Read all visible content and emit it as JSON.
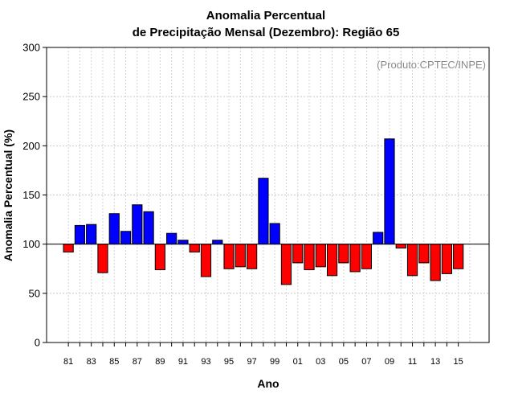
{
  "chart_data": {
    "type": "bar",
    "title_line1": "Anomalia Percentual",
    "title_line2": "de Precipitação Mensal (Dezembro): Região 65",
    "xlabel": "Ano",
    "ylabel": "Anomalia Percentual (%)",
    "credit": "(Produto:CPTEC/INPE)",
    "baseline": 100,
    "ylim": [
      0,
      300
    ],
    "yticks": [
      0,
      50,
      100,
      150,
      200,
      250,
      300
    ],
    "xtick_labels": [
      "81",
      "83",
      "85",
      "87",
      "89",
      "91",
      "93",
      "95",
      "97",
      "99",
      "01",
      "03",
      "05",
      "07",
      "09",
      "11",
      "13",
      "15"
    ],
    "categories": [
      "81",
      "82",
      "83",
      "84",
      "85",
      "86",
      "87",
      "88",
      "89",
      "90",
      "91",
      "92",
      "93",
      "94",
      "95",
      "96",
      "97",
      "98",
      "99",
      "00",
      "01",
      "02",
      "03",
      "04",
      "05",
      "06",
      "07",
      "08",
      "09",
      "10",
      "11",
      "12",
      "13",
      "14",
      "15"
    ],
    "values": [
      92,
      119,
      120,
      71,
      131,
      113,
      140,
      133,
      74,
      111,
      104,
      92,
      67,
      104,
      75,
      77,
      75,
      167,
      121,
      59,
      81,
      74,
      77,
      68,
      81,
      72,
      75,
      112,
      207,
      96,
      68,
      81,
      63,
      70,
      75
    ],
    "colors": {
      "above": "#0000ff",
      "below": "#ff0000"
    },
    "grid": true
  }
}
